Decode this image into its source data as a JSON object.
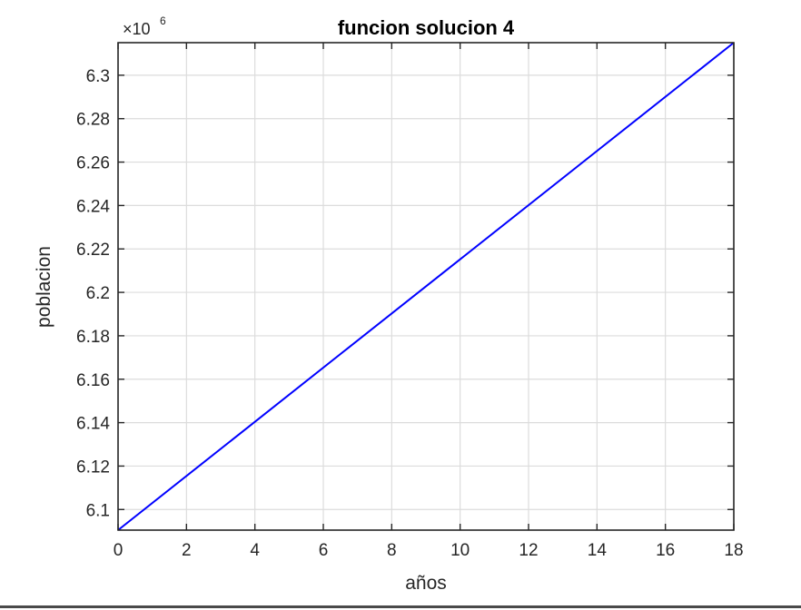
{
  "chart_data": {
    "type": "line",
    "title": "funcion solucion 4",
    "xlabel": "años",
    "ylabel": "poblacion",
    "y_exponent_label": "×10",
    "y_exponent_power": "6",
    "xlim": [
      0,
      18
    ],
    "ylim": [
      6.0905,
      6.315
    ],
    "xticks": [
      0,
      2,
      4,
      6,
      8,
      10,
      12,
      14,
      16,
      18
    ],
    "xtick_labels": [
      "0",
      "2",
      "4",
      "6",
      "8",
      "10",
      "12",
      "14",
      "16",
      "18"
    ],
    "yticks": [
      6.1,
      6.12,
      6.14,
      6.16,
      6.18,
      6.2,
      6.22,
      6.24,
      6.26,
      6.28,
      6.3
    ],
    "ytick_labels": [
      "6.1",
      "6.12",
      "6.14",
      "6.16",
      "6.18",
      "6.2",
      "6.22",
      "6.24",
      "6.26",
      "6.28",
      "6.3"
    ],
    "grid": true,
    "series": [
      {
        "color": "#0000ff",
        "x": [
          0,
          18
        ],
        "y": [
          6.0905,
          6.315
        ]
      }
    ]
  }
}
